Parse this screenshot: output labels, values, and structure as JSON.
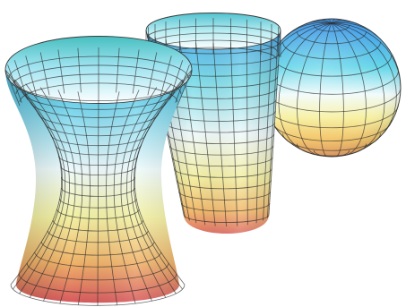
{
  "scene": {
    "background": "#ffffff",
    "grid_color": "#2b2b2b",
    "surfaces": [
      "hyperboloid",
      "cylinder",
      "sphere"
    ],
    "color_scale": [
      "#4fa3f7",
      "#5ee0e6",
      "#f4fbfb",
      "#f7f2a0",
      "#f5c96b",
      "#e9866e",
      "#d9595f"
    ]
  }
}
